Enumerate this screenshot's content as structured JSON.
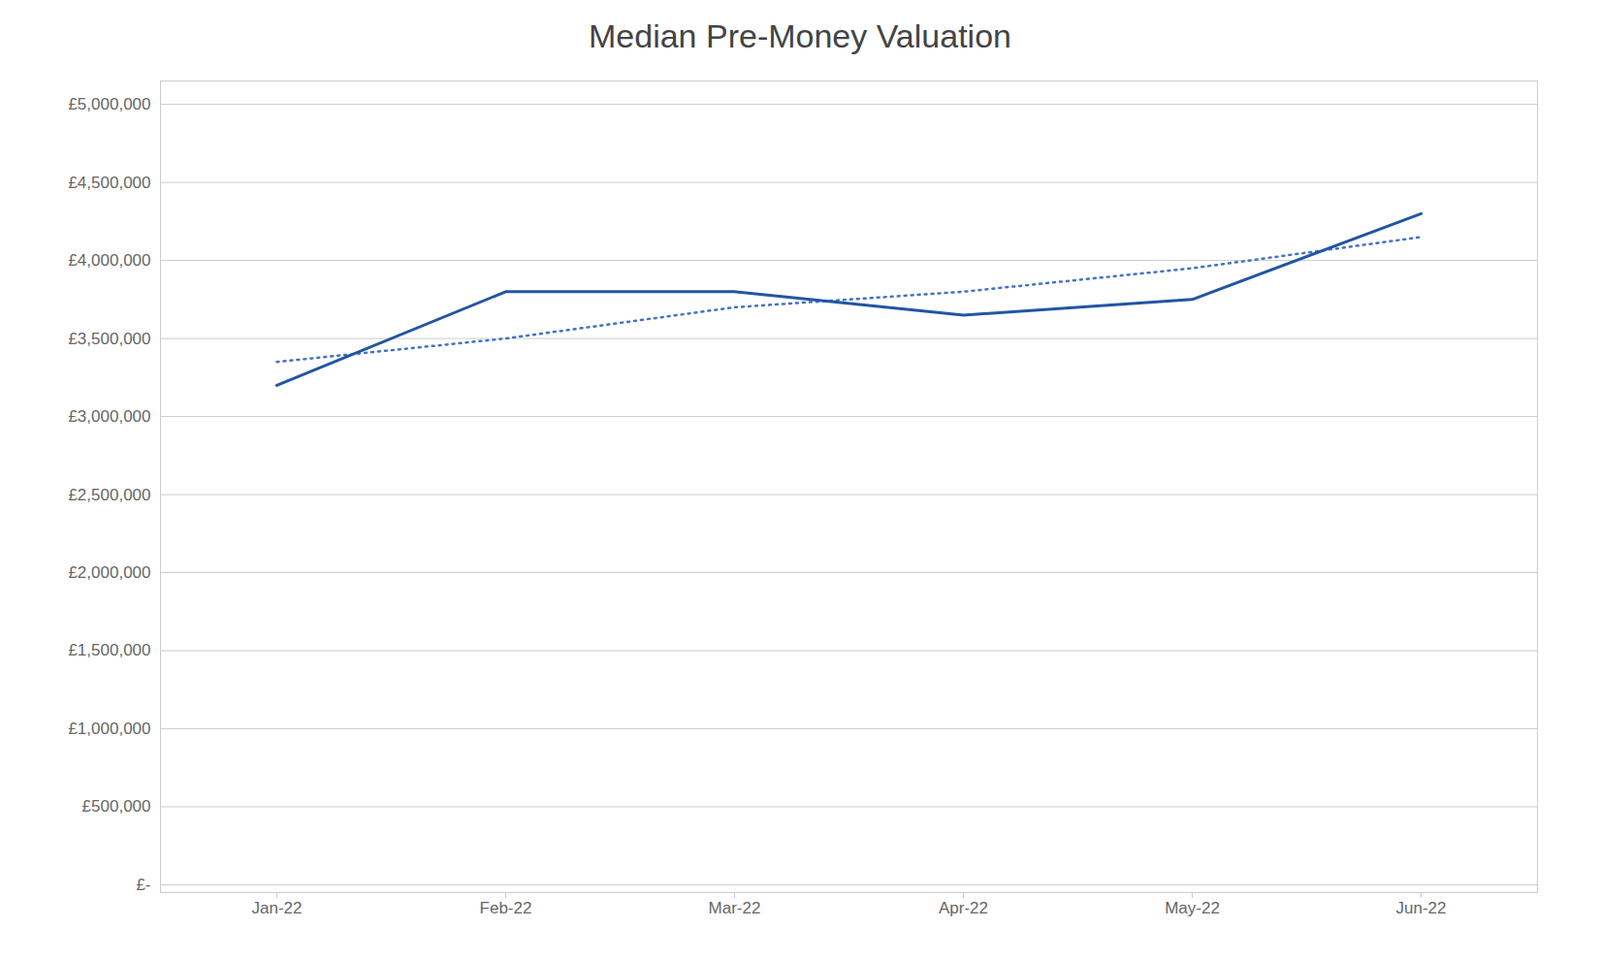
{
  "chart_data": {
    "type": "line",
    "title": "Median Pre-Money Valuation",
    "categories": [
      "Jan-22",
      "Feb-22",
      "Mar-22",
      "Apr-22",
      "May-22",
      "Jun-22"
    ],
    "series": [
      {
        "color": "#4472c4",
        "line_style": "dotted",
        "values": [
          3350000,
          3500000,
          3700000,
          3800000,
          3950000,
          4150000
        ]
      },
      {
        "color": "#2255a4",
        "line_style": "solid",
        "values": [
          3200000,
          3800000,
          3800000,
          3650000,
          3750000,
          4300000
        ]
      }
    ],
    "ylim": [
      -50000,
      5150000
    ],
    "yticks": [
      {
        "value": 0,
        "label": "£-"
      },
      {
        "value": 500000,
        "label": "£500,000"
      },
      {
        "value": 1000000,
        "label": "£1,000,000"
      },
      {
        "value": 1500000,
        "label": "£1,500,000"
      },
      {
        "value": 2000000,
        "label": "£2,000,000"
      },
      {
        "value": 2500000,
        "label": "£2,500,000"
      },
      {
        "value": 3000000,
        "label": "£3,000,000"
      },
      {
        "value": 3500000,
        "label": "£3,500,000"
      },
      {
        "value": 4000000,
        "label": "£4,000,000"
      },
      {
        "value": 4500000,
        "label": "£4,500,000"
      },
      {
        "value": 5000000,
        "label": "£5,000,000"
      }
    ],
    "grid": true
  }
}
